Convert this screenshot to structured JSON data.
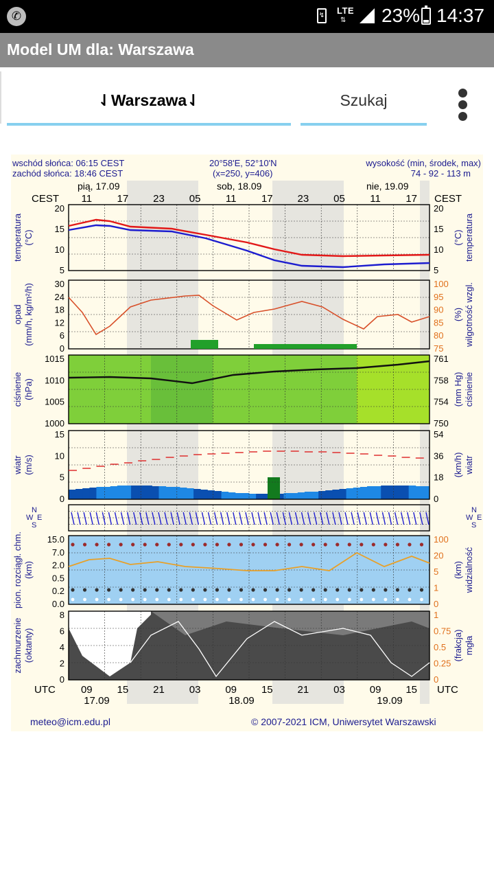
{
  "status_bar": {
    "network": "LTE",
    "battery": "23%",
    "time": "14:37"
  },
  "app_title": "Model UM dla: Warszawa",
  "tabs": {
    "city": "⇃Warszawa⇃",
    "search": "Szukaj"
  },
  "meteogram": {
    "sunrise": "wschód słońca: 06:15 CEST",
    "sunset": "zachód słońca: 18:46 CEST",
    "coords": "20°58'E, 52°10'N",
    "grid": "(x=250, y=406)",
    "elevation_label": "wysokość (min, środek, max)",
    "elevation_values": "74 - 92 - 113 m",
    "days_top": [
      "pią, 17.09",
      "sob, 18.09",
      "nie, 19.09"
    ],
    "tz_top": "CEST",
    "hours_top": [
      "11",
      "17",
      "23",
      "05",
      "11",
      "17",
      "23",
      "05",
      "11",
      "17"
    ],
    "tz_bottom": "UTC",
    "hours_bottom": [
      "09",
      "15",
      "21",
      "03",
      "09",
      "15",
      "21",
      "03",
      "09",
      "15"
    ],
    "days_bottom": [
      "17.09",
      "18.09",
      "19.09"
    ],
    "panels": {
      "temperature": {
        "left": [
          "temperatura",
          "(°C)"
        ],
        "right": [
          "(°C)",
          "temperatura"
        ],
        "ticks": [
          "20",
          "15",
          "10",
          "5"
        ]
      },
      "precip": {
        "left": [
          "opad",
          "(mm/h, kg/m²/h)"
        ],
        "right": [
          "(%)",
          "wilgotność wzgl."
        ],
        "ticks_left": [
          "30",
          "24",
          "18",
          "12",
          "6",
          "0"
        ],
        "ticks_right": [
          "100",
          "95",
          "90",
          "85",
          "80",
          "75"
        ]
      },
      "pressure": {
        "left": [
          "ciśnienie",
          "(hPa)"
        ],
        "right": [
          "(mm Hg)",
          "ciśnienie"
        ],
        "ticks_left": [
          "1015",
          "1010",
          "1005",
          "1000"
        ],
        "ticks_right": [
          "761",
          "758",
          "754",
          "750"
        ]
      },
      "wind": {
        "left": [
          "wiatr",
          "(m/s)"
        ],
        "right": [
          "(km/h)",
          "wiatr"
        ],
        "ticks_left": [
          "15",
          "10",
          "5",
          "0"
        ],
        "ticks_right": [
          "54",
          "36",
          "18",
          "0"
        ]
      },
      "direction": {
        "compass": [
          "N",
          "W",
          "E",
          "S"
        ]
      },
      "visibility": {
        "left": [
          "pion. rozciągł. chm.",
          "(km)"
        ],
        "right": [
          "(km)",
          "widzialność"
        ],
        "ticks_left": [
          "15.0",
          "7.0",
          "2.0",
          "0.5",
          "0.2",
          "0.0"
        ],
        "ticks_right": [
          "100",
          "20",
          "5",
          "1",
          "0"
        ]
      },
      "cloud": {
        "left": [
          "zachmurzenie",
          "(oktanty)"
        ],
        "right": [
          "(frakcja)",
          "mgła"
        ],
        "ticks_left": [
          "8",
          "6",
          "4",
          "2",
          "0"
        ],
        "ticks_right": [
          "1",
          "0.75",
          "0.5",
          "0.25",
          "0"
        ]
      }
    },
    "footer_email": "meteo@icm.edu.pl",
    "footer_copyright": "© 2007-2021 ICM, Uniwersytet Warszawski"
  },
  "colors": {
    "status_bar": "#000000",
    "title_bar": "#8a8a8a",
    "tab_underline": "#87d0ef",
    "label_blue": "#1b1b8f",
    "label_orange": "#e0701c",
    "meteogram_bg": "#fffbea"
  },
  "icons": {
    "call": "phone-icon",
    "battery": "battery-icon",
    "menu": "more-vert-icon"
  }
}
